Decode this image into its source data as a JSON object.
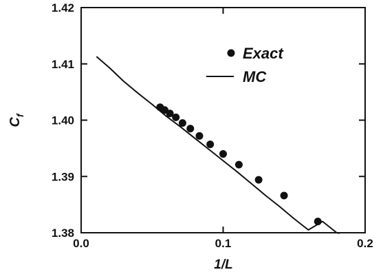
{
  "chart_data": {
    "type": "scatter",
    "xlabel": "1/L",
    "ylabel_main": "C",
    "ylabel_sub": "f",
    "xlim": [
      0.0,
      0.2
    ],
    "ylim": [
      1.38,
      1.42
    ],
    "x_ticks": [
      0.0,
      0.1,
      0.2
    ],
    "x_tick_labels": [
      "0.0",
      "0.1",
      "0.2"
    ],
    "y_ticks": [
      1.38,
      1.39,
      1.4,
      1.41,
      1.42
    ],
    "y_tick_labels": [
      "1.38",
      "1.39",
      "1.40",
      "1.41",
      "1.42"
    ],
    "grid": false,
    "legend_position": "top-right",
    "series": [
      {
        "name": "Exact",
        "kind": "markers",
        "marker": "filled-circle",
        "x": [
          0.0556,
          0.0588,
          0.0625,
          0.0667,
          0.0714,
          0.0769,
          0.0833,
          0.0909,
          0.1,
          0.1111,
          0.125,
          0.1429,
          0.1667
        ],
        "y": [
          1.4023,
          1.4018,
          1.4012,
          1.4005,
          1.3995,
          1.3985,
          1.3972,
          1.3957,
          1.394,
          1.3921,
          1.3894,
          1.3866,
          1.382
        ]
      },
      {
        "name": "MC",
        "kind": "line",
        "x": [
          0.0108,
          0.02,
          0.03,
          0.04,
          0.05,
          0.06,
          0.07,
          0.08,
          0.09,
          0.1,
          0.11,
          0.12,
          0.13,
          0.14,
          0.15,
          0.16,
          0.17,
          0.18,
          0.182
        ],
        "y": [
          1.4113,
          1.4093,
          1.4069,
          1.4048,
          1.4028,
          1.4007,
          1.3988,
          1.3968,
          1.3948,
          1.3928,
          1.3908,
          1.3887,
          1.3866,
          1.3846,
          1.3825,
          1.3805,
          1.382,
          1.38,
          1.3799
        ]
      }
    ]
  }
}
